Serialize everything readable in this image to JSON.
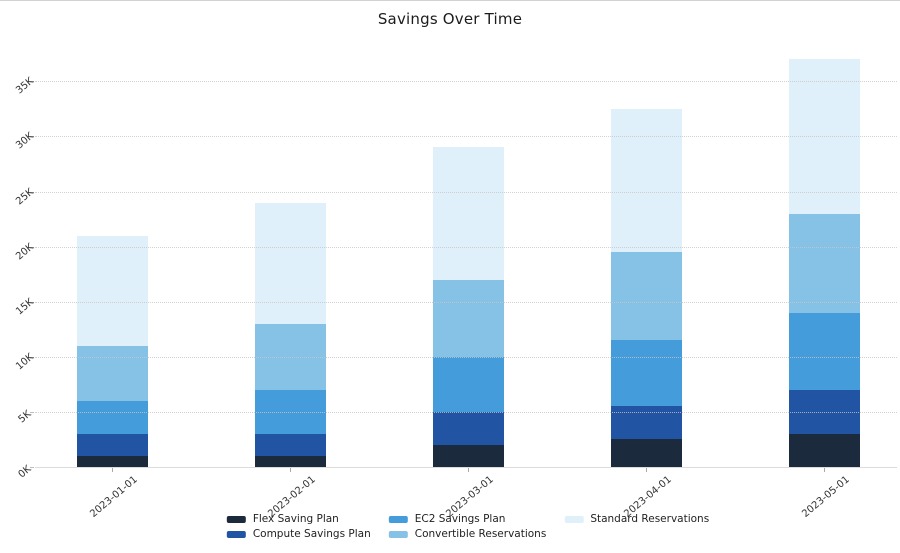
{
  "chart_data": {
    "type": "bar",
    "stacked": true,
    "title": "Savings Over Time",
    "categories": [
      "2023-01-01",
      "2023-02-01",
      "2023-03-01",
      "2023-04-01",
      "2023-05-01"
    ],
    "series": [
      {
        "name": "Flex Saving Plan",
        "color": "#1c2a3e",
        "values": [
          1000,
          1000,
          2000,
          2500,
          3000
        ]
      },
      {
        "name": "Compute Savings Plan",
        "color": "#2254a4",
        "values": [
          2000,
          2000,
          3000,
          3000,
          4000
        ]
      },
      {
        "name": "EC2 Savings Plan",
        "color": "#459cda",
        "values": [
          3000,
          4000,
          5000,
          6000,
          7000
        ]
      },
      {
        "name": "Convertible Reservations",
        "color": "#86c2e6",
        "values": [
          5000,
          6000,
          7000,
          8000,
          9000
        ]
      },
      {
        "name": "Standard Reservations",
        "color": "#dff0fb",
        "values": [
          10000,
          11000,
          12000,
          13000,
          14000
        ]
      }
    ],
    "yticks": [
      0,
      5000,
      10000,
      15000,
      20000,
      25000,
      30000,
      35000
    ],
    "ytick_labels": [
      "0K",
      "5K",
      "10K",
      "15K",
      "20K",
      "25K",
      "30K",
      "35K"
    ],
    "ylim": [
      0,
      37500
    ],
    "xlabel": "",
    "ylabel": "",
    "grid": "horizontal-dotted",
    "legend_position": "bottom-center",
    "tick_label_rotation_deg": 40
  }
}
